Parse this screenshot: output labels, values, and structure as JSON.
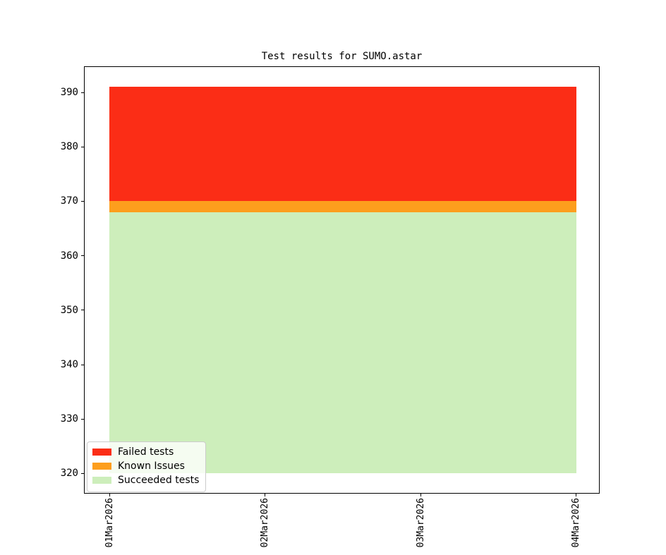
{
  "chart_data": {
    "type": "area",
    "stacked": true,
    "title": "Test results for SUMO.astar",
    "x_categories": [
      "01Mar2026",
      "02Mar2026",
      "03Mar2026",
      "04Mar2026"
    ],
    "series": [
      {
        "name": "Succeeded tests",
        "color": "#cdeebb",
        "values": [
          368,
          368,
          368,
          368
        ]
      },
      {
        "name": "Known Issues",
        "color": "#fd9e1d",
        "values": [
          2,
          2,
          2,
          2
        ]
      },
      {
        "name": "Failed tests",
        "color": "#fb2d16",
        "values": [
          21,
          21,
          21,
          21
        ]
      }
    ],
    "stack_baseline": 320,
    "stack_boundaries": [
      320,
      368,
      370,
      391
    ],
    "total_tests": 391,
    "y_ticks": [
      320,
      330,
      340,
      350,
      360,
      370,
      380,
      390
    ],
    "ylim": [
      316.3,
      394.8
    ],
    "xlim_days": [
      -0.165,
      3.15
    ],
    "x_tick_rotation_deg": 90,
    "grid": false,
    "axis_color": "#000000",
    "legend": {
      "position": "lower-left",
      "entries": [
        {
          "label": "Failed tests",
          "color": "#fb2d16"
        },
        {
          "label": "Known Issues",
          "color": "#fd9e1d"
        },
        {
          "label": "Succeeded tests",
          "color": "#cdeebb"
        }
      ]
    }
  }
}
